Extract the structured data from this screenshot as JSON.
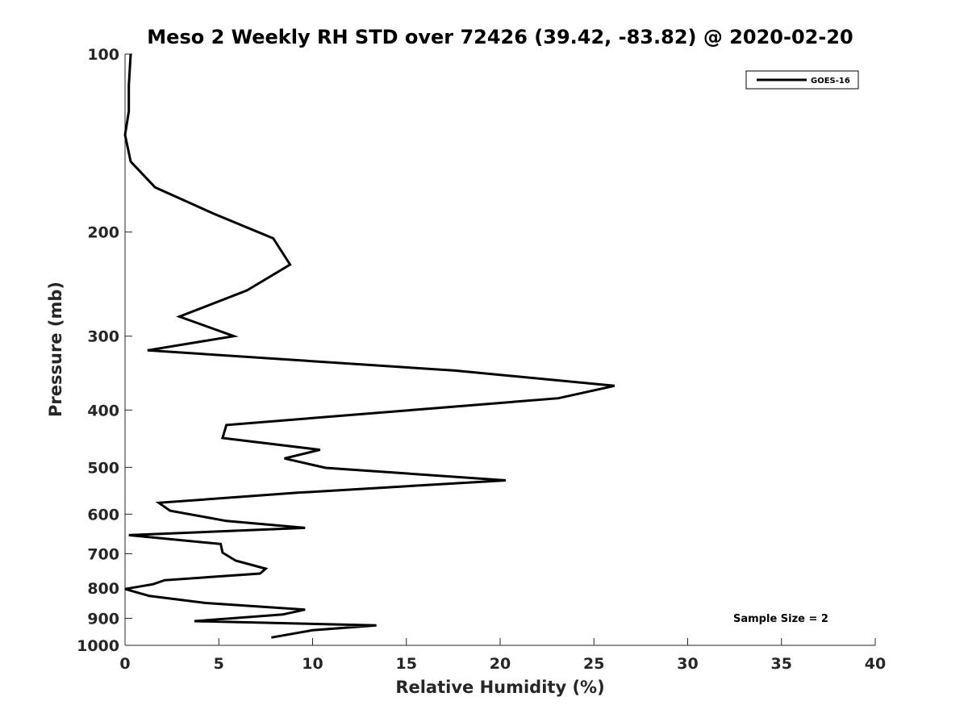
{
  "chart_data": {
    "type": "line",
    "title": "Meso 2 Weekly RH STD over 72426 (39.42, -83.82) @ 2020-02-20",
    "xlabel": "Relative Humidity (%)",
    "ylabel": "Pressure (mb)",
    "xlim": [
      0,
      40
    ],
    "ylim": [
      100,
      1000
    ],
    "y_scale": "log",
    "y_reversed": true,
    "x_ticks": [
      0,
      5,
      10,
      15,
      20,
      25,
      30,
      35,
      40
    ],
    "y_ticks": [
      100,
      200,
      300,
      400,
      500,
      600,
      700,
      800,
      900,
      1000
    ],
    "grid": false,
    "legend_position": "top-right",
    "series": [
      {
        "name": "GOES-16",
        "color": "#000000",
        "points": [
          [
            0.3,
            100
          ],
          [
            0.2,
            113
          ],
          [
            0.2,
            125
          ],
          [
            0.0,
            137
          ],
          [
            0.3,
            152
          ],
          [
            1.6,
            168
          ],
          [
            4.7,
            186
          ],
          [
            7.9,
            205
          ],
          [
            8.8,
            227
          ],
          [
            6.5,
            251
          ],
          [
            2.9,
            278
          ],
          [
            5.8,
            300
          ],
          [
            1.2,
            317
          ],
          [
            17.6,
            343
          ],
          [
            26.1,
            364
          ],
          [
            23.1,
            382
          ],
          [
            5.4,
            424
          ],
          [
            5.2,
            446
          ],
          [
            10.4,
            467
          ],
          [
            8.5,
            483
          ],
          [
            10.7,
            501
          ],
          [
            20.3,
            526
          ],
          [
            9.2,
            552
          ],
          [
            1.8,
            574
          ],
          [
            2.4,
            592
          ],
          [
            5.4,
            616
          ],
          [
            9.6,
            633
          ],
          [
            0.2,
            651
          ],
          [
            5.1,
            674
          ],
          [
            5.2,
            697
          ],
          [
            5.9,
            719
          ],
          [
            7.5,
            742
          ],
          [
            7.2,
            756
          ],
          [
            2.1,
            776
          ],
          [
            1.5,
            788
          ],
          [
            0.0,
            803
          ],
          [
            1.3,
            825
          ],
          [
            4.3,
            848
          ],
          [
            9.6,
            870
          ],
          [
            8.4,
            887
          ],
          [
            3.7,
            910
          ],
          [
            13.4,
            925
          ],
          [
            10.0,
            943
          ],
          [
            7.8,
            970
          ]
        ]
      }
    ],
    "annotations": [
      "Sample Size = 2"
    ]
  }
}
